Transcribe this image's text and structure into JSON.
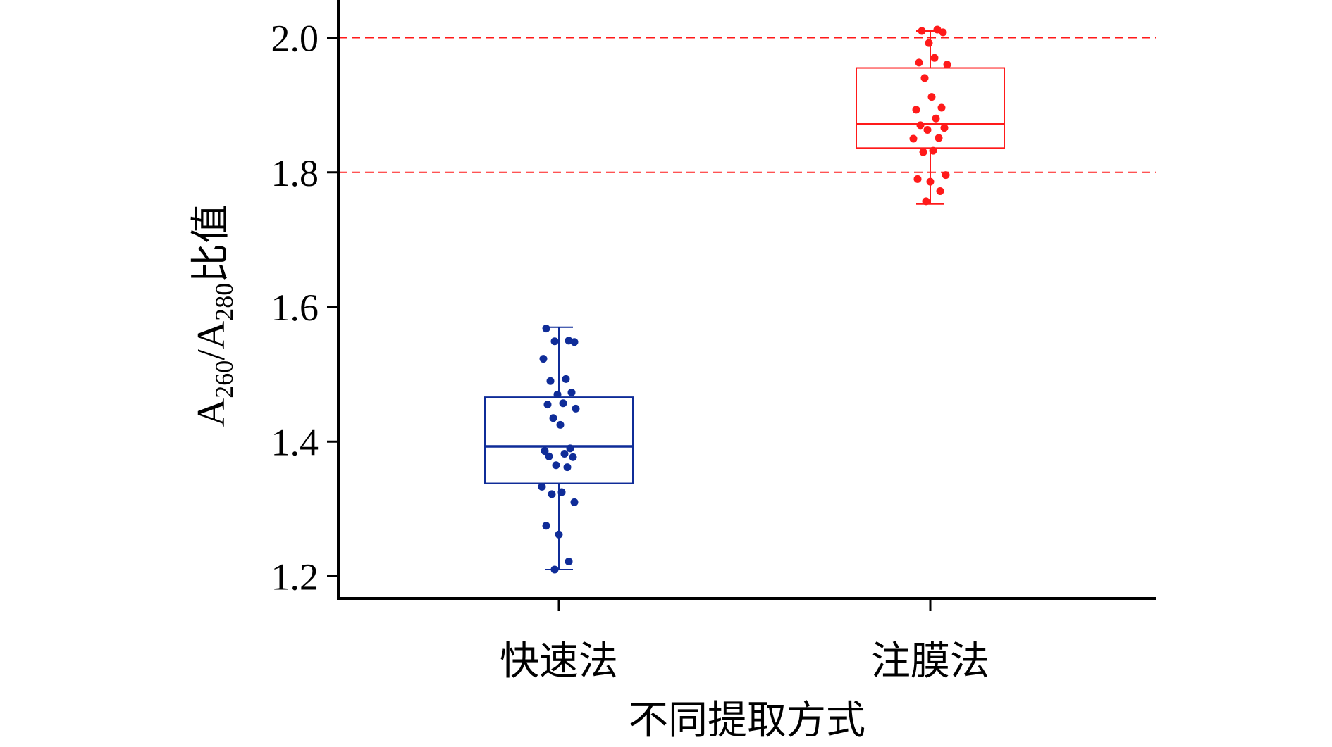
{
  "chart_data": {
    "type": "box",
    "title": "",
    "xlabel": "不同提取方式",
    "ylabel": {
      "parts": [
        "A",
        "260",
        "/A",
        "280",
        "比值"
      ]
    },
    "ylim": [
      1.17,
      2.05
    ],
    "yticks": [
      1.2,
      1.4,
      1.6,
      1.8,
      2.0
    ],
    "ytick_labels": [
      "1.2",
      "1.4",
      "1.6",
      "1.8",
      "2.0"
    ],
    "categories": [
      "快速法",
      "注膜法"
    ],
    "reference_lines": [
      2.0,
      1.8
    ],
    "reference_line_color": "#ff1a1a",
    "grid": false,
    "legend": "none",
    "series": [
      {
        "category": "快速法",
        "color": "#0f2c98",
        "box": {
          "whisker_low": 1.21,
          "q1": 1.338,
          "median": 1.393,
          "q3": 1.466,
          "whisker_high": 1.57
        },
        "points": [
          1.568,
          1.55,
          1.549,
          1.548,
          1.523,
          1.493,
          1.49,
          1.473,
          1.47,
          1.457,
          1.455,
          1.449,
          1.435,
          1.425,
          1.39,
          1.386,
          1.382,
          1.378,
          1.377,
          1.365,
          1.362,
          1.333,
          1.325,
          1.322,
          1.31,
          1.275,
          1.262,
          1.222,
          1.21
        ]
      },
      {
        "category": "注膜法",
        "color": "#ff1a1a",
        "box": {
          "whisker_low": 1.753,
          "q1": 1.836,
          "median": 1.872,
          "q3": 1.955,
          "whisker_high": 2.01
        },
        "points": [
          2.012,
          2.01,
          2.008,
          1.992,
          1.97,
          1.963,
          1.96,
          1.94,
          1.912,
          1.896,
          1.893,
          1.88,
          1.87,
          1.866,
          1.863,
          1.851,
          1.85,
          1.832,
          1.83,
          1.796,
          1.79,
          1.786,
          1.772,
          1.757
        ]
      }
    ]
  }
}
